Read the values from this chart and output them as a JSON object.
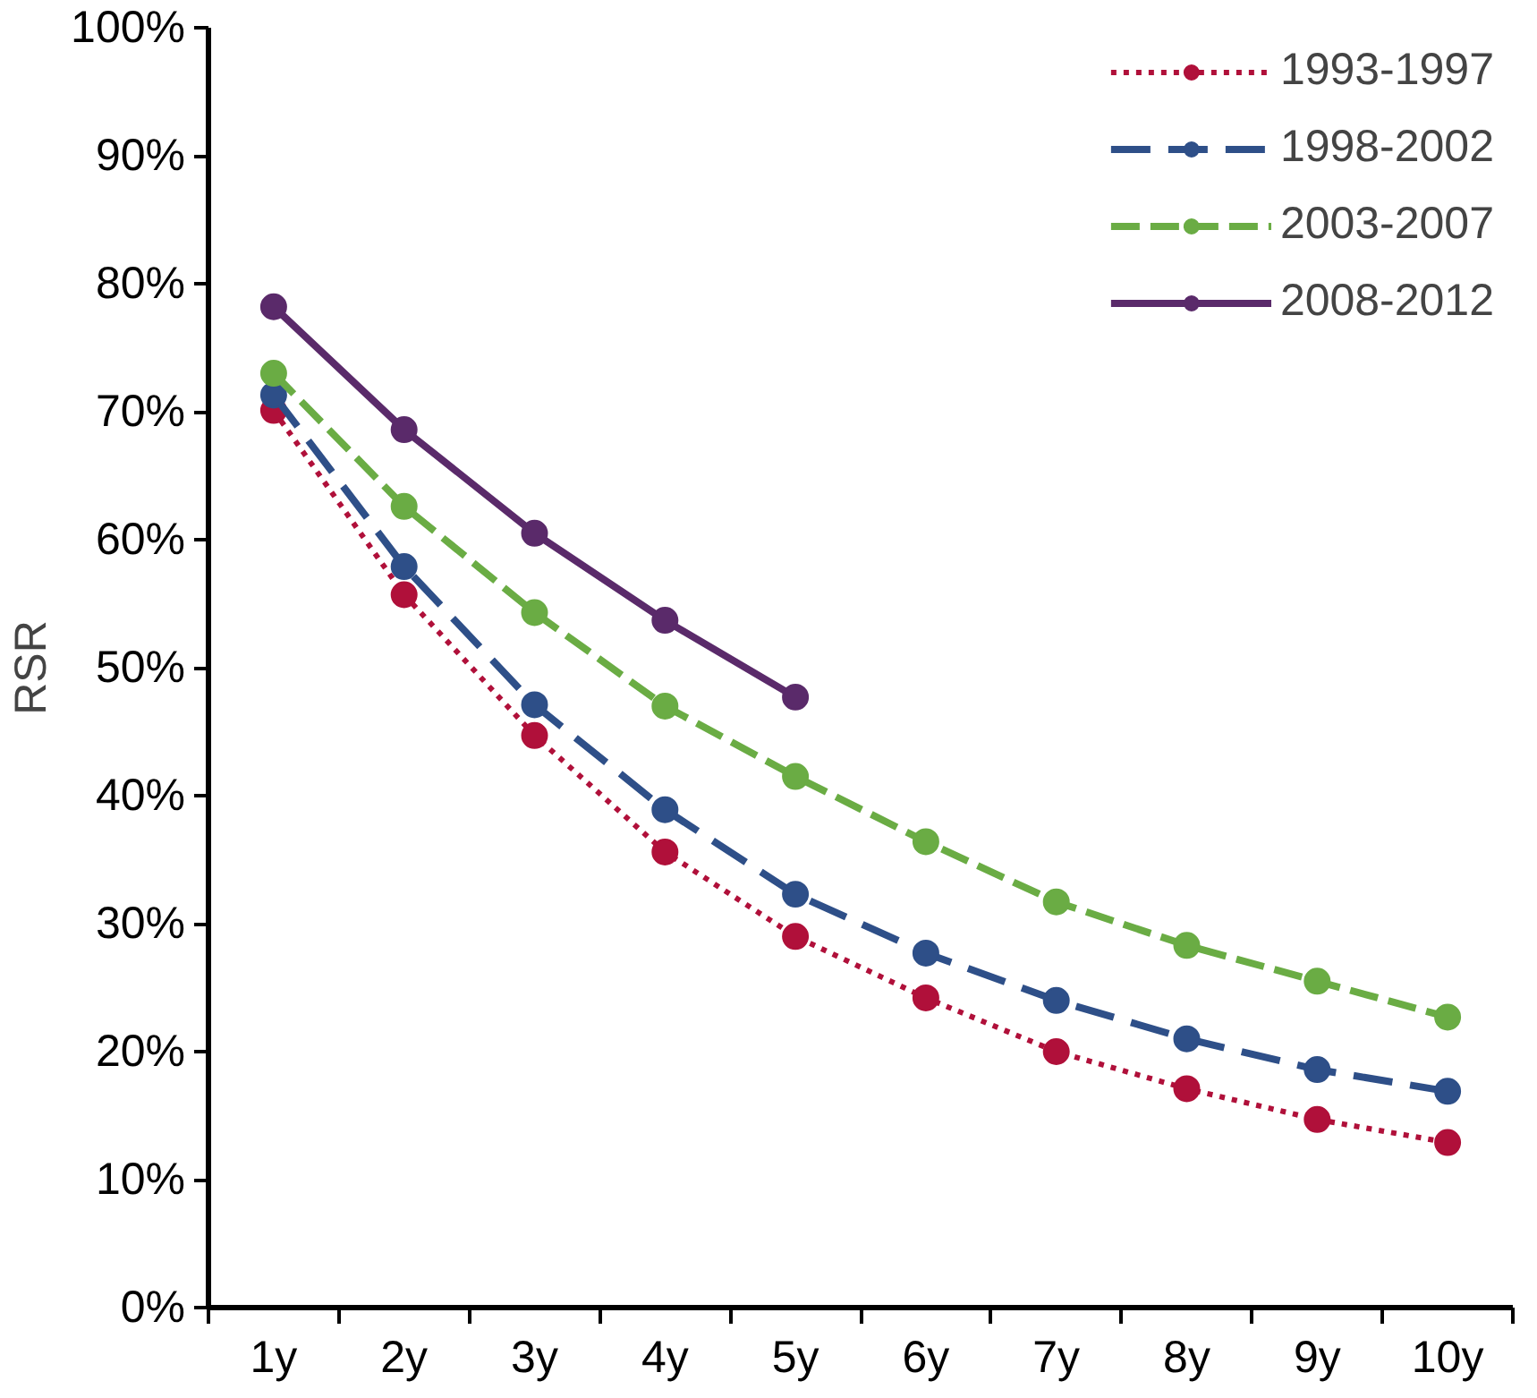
{
  "chart_data": {
    "type": "line",
    "ylabel": "RSR",
    "categories": [
      "1y",
      "2y",
      "3y",
      "4y",
      "5y",
      "6y",
      "7y",
      "8y",
      "9y",
      "10y"
    ],
    "ylim": [
      0,
      100
    ],
    "yticks": [
      {
        "value": 0,
        "label": "0%"
      },
      {
        "value": 10,
        "label": "10%"
      },
      {
        "value": 20,
        "label": "20%"
      },
      {
        "value": 30,
        "label": "30%"
      },
      {
        "value": 40,
        "label": "40%"
      },
      {
        "value": 50,
        "label": "50%"
      },
      {
        "value": 60,
        "label": "60%"
      },
      {
        "value": 70,
        "label": "70%"
      },
      {
        "value": 80,
        "label": "80%"
      },
      {
        "value": 90,
        "label": "90%"
      },
      {
        "value": 100,
        "label": "100%"
      }
    ],
    "grid": false,
    "legend": "top right",
    "marker": "circle",
    "series": [
      {
        "name": "1993-1997",
        "color": "#b0103a",
        "line_style": "dotted",
        "values": [
          70.1,
          55.7,
          44.7,
          35.6,
          29.0,
          24.2,
          20.0,
          17.1,
          14.7,
          12.9
        ]
      },
      {
        "name": "1998-2002",
        "color": "#2e4f88",
        "line_style": "dashed",
        "values": [
          71.3,
          57.9,
          47.1,
          38.9,
          32.3,
          27.7,
          24.0,
          21.0,
          18.6,
          16.9
        ]
      },
      {
        "name": "2003-2007",
        "color": "#6aac44",
        "line_style": "dashed",
        "values": [
          73.0,
          62.6,
          54.3,
          47.0,
          41.5,
          36.4,
          31.7,
          28.3,
          25.5,
          22.7
        ]
      },
      {
        "name": "2008-2012",
        "color": "#5a2a6a",
        "line_style": "solid",
        "values": [
          78.2,
          68.6,
          60.5,
          53.7,
          47.7,
          null,
          null,
          null,
          null,
          null
        ]
      }
    ]
  }
}
